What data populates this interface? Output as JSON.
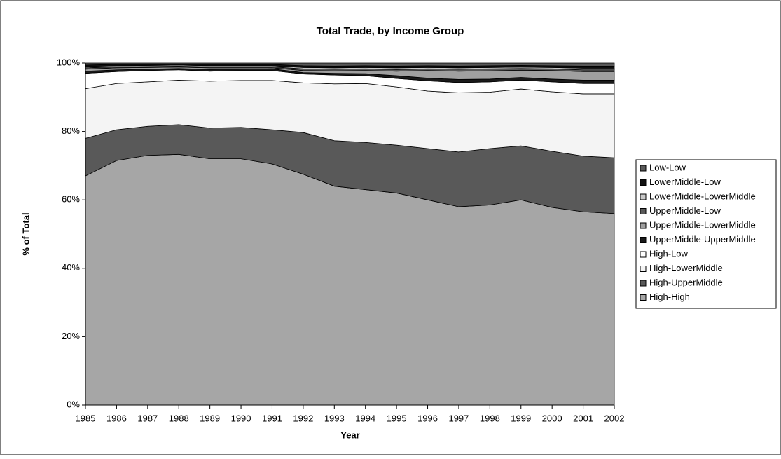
{
  "chart_data": {
    "type": "stacked-area",
    "title": "Total Trade, by Income Group",
    "x_label": "Year",
    "y_label": "% of Total",
    "categories": [
      "1985",
      "1986",
      "1987",
      "1988",
      "1989",
      "1990",
      "1991",
      "1992",
      "1993",
      "1994",
      "1995",
      "1996",
      "1997",
      "1998",
      "1999",
      "2000",
      "2001",
      "2002"
    ],
    "ylim": [
      0,
      100
    ],
    "yticks": [
      {
        "value": 0,
        "label": "0%"
      },
      {
        "value": 20,
        "label": "20%"
      },
      {
        "value": 40,
        "label": "40%"
      },
      {
        "value": 60,
        "label": "60%"
      },
      {
        "value": 80,
        "label": "80%"
      },
      {
        "value": 100,
        "label": "100%"
      }
    ],
    "legend": "right",
    "series": [
      {
        "name": "High-High",
        "color": "#a6a6a6",
        "values": [
          67,
          71.5,
          73,
          73.3,
          72,
          72,
          70.5,
          67.5,
          64,
          63,
          62,
          60,
          58,
          58.5,
          60,
          57.8,
          56.5,
          56
        ]
      },
      {
        "name": "High-UpperMiddle",
        "color": "#595959",
        "values": [
          11,
          9,
          8.5,
          8.7,
          9,
          9.2,
          10,
          12.2,
          13.3,
          13.8,
          14,
          15,
          16,
          16.5,
          15.8,
          16.4,
          16.3,
          16.3
        ]
      },
      {
        "name": "High-LowerMiddle",
        "color": "#f4f4f4",
        "values": [
          14.5,
          13.5,
          13,
          13,
          13.7,
          13.7,
          14.4,
          14.5,
          16.6,
          17.2,
          17,
          16.8,
          17.3,
          16.5,
          16.6,
          17.4,
          18.2,
          18.7
        ]
      },
      {
        "name": "High-Low",
        "color": "#ffffff",
        "values": [
          4.5,
          3.5,
          3.3,
          3,
          2.9,
          2.9,
          2.9,
          2.6,
          2.6,
          2.3,
          2.5,
          3,
          3,
          3,
          2.6,
          2.9,
          3,
          3
        ]
      },
      {
        "name": "UpperMiddle-UpperMiddle",
        "color": "#1a1a1a",
        "values": [
          0.6,
          0.5,
          0.4,
          0.4,
          0.5,
          0.4,
          0.5,
          0.4,
          0.5,
          0.6,
          0.8,
          0.8,
          0.9,
          0.8,
          0.8,
          0.8,
          1,
          1
        ]
      },
      {
        "name": "UpperMiddle-LowerMiddle",
        "color": "#a0a0a0",
        "values": [
          0.6,
          0.6,
          0.5,
          0.4,
          0.5,
          0.4,
          0.3,
          0.6,
          0.7,
          0.9,
          1.3,
          2.2,
          2.4,
          2.4,
          2.1,
          2.5,
          2.5,
          2.5
        ]
      },
      {
        "name": "UpperMiddle-Low",
        "color": "#595959",
        "values": [
          0.4,
          0.3,
          0.3,
          0.3,
          0.3,
          0.3,
          0.3,
          0.5,
          0.5,
          0.5,
          0.5,
          0.5,
          0.6,
          0.6,
          0.5,
          0.5,
          0.5,
          0.5
        ]
      },
      {
        "name": "LowerMiddle-LowerMiddle",
        "color": "#c8c8c8",
        "values": [
          0.4,
          0.3,
          0.3,
          0.3,
          0.3,
          0.3,
          0.3,
          0.4,
          0.4,
          0.4,
          0.5,
          0.4,
          0.4,
          0.4,
          0.4,
          0.4,
          0.5,
          0.5
        ]
      },
      {
        "name": "LowerMiddle-Low",
        "color": "#111111",
        "values": [
          0.4,
          0.4,
          0.3,
          0.3,
          0.4,
          0.4,
          0.4,
          0.5,
          0.5,
          0.5,
          0.5,
          0.5,
          0.5,
          0.5,
          0.5,
          0.5,
          0.6,
          0.6
        ]
      },
      {
        "name": "Low-Low",
        "color": "#595959",
        "values": [
          0.6,
          0.4,
          0.4,
          0.3,
          0.4,
          0.4,
          0.4,
          0.8,
          0.9,
          0.8,
          0.9,
          0.8,
          0.9,
          0.8,
          0.7,
          0.8,
          0.9,
          0.9
        ]
      }
    ]
  }
}
